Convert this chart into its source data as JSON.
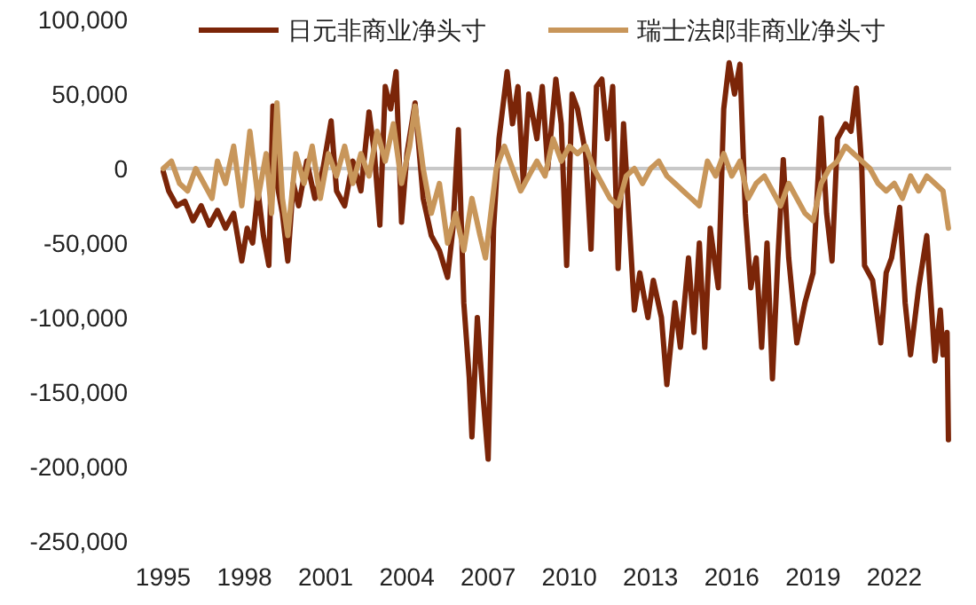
{
  "chart_data": {
    "type": "line",
    "xlim": [
      1995,
      2024.1
    ],
    "ylim": [
      -250000,
      100000
    ],
    "xticks": [
      1995,
      1998,
      2001,
      2004,
      2007,
      2010,
      2013,
      2016,
      2019,
      2022
    ],
    "yticks": [
      {
        "value": -250000,
        "label": "-250,000"
      },
      {
        "value": -200000,
        "label": "-200,000"
      },
      {
        "value": -150000,
        "label": "-150,000"
      },
      {
        "value": -100000,
        "label": "-100,000"
      },
      {
        "value": -50000,
        "label": "-50,000"
      },
      {
        "value": 0,
        "label": "0"
      },
      {
        "value": 50000,
        "label": "50,000"
      },
      {
        "value": 100000,
        "label": "100,000"
      }
    ],
    "grid": false,
    "legend": "top",
    "marker": "none",
    "line_style": "solid",
    "ref_lines": [
      {
        "axis": "y",
        "value": 0,
        "color": "#c8c8c8"
      }
    ],
    "series": [
      {
        "name": "日元非商业净头寸",
        "color": "#7b2508",
        "x": [
          1995.0,
          1995.2,
          1995.5,
          1995.8,
          1996.1,
          1996.4,
          1996.7,
          1997.0,
          1997.3,
          1997.6,
          1997.9,
          1998.1,
          1998.3,
          1998.5,
          1998.7,
          1998.9,
          1999.05,
          1999.2,
          1999.4,
          1999.6,
          1999.8,
          2000.0,
          2000.3,
          2000.6,
          2000.9,
          2001.2,
          2001.4,
          2001.7,
          2002.0,
          2002.3,
          2002.6,
          2002.8,
          2003.0,
          2003.2,
          2003.4,
          2003.6,
          2003.8,
          2004.0,
          2004.3,
          2004.6,
          2004.9,
          2005.2,
          2005.5,
          2005.7,
          2005.9,
          2006.1,
          2006.3,
          2006.4,
          2006.6,
          2006.8,
          2007.0,
          2007.2,
          2007.4,
          2007.7,
          2007.9,
          2008.1,
          2008.3,
          2008.5,
          2008.8,
          2009.0,
          2009.2,
          2009.5,
          2009.7,
          2009.9,
          2010.1,
          2010.3,
          2010.6,
          2010.8,
          2011.0,
          2011.2,
          2011.4,
          2011.6,
          2011.8,
          2012.0,
          2012.4,
          2012.6,
          2012.9,
          2013.1,
          2013.4,
          2013.6,
          2013.9,
          2014.1,
          2014.4,
          2014.6,
          2014.8,
          2015.0,
          2015.2,
          2015.5,
          2015.7,
          2015.9,
          2016.1,
          2016.3,
          2016.5,
          2016.7,
          2016.9,
          2017.1,
          2017.3,
          2017.5,
          2017.7,
          2017.9,
          2018.1,
          2018.4,
          2018.7,
          2019.0,
          2019.3,
          2019.5,
          2019.7,
          2019.9,
          2020.2,
          2020.4,
          2020.6,
          2020.8,
          2020.9,
          2021.2,
          2021.5,
          2021.7,
          2021.9,
          2022.2,
          2022.4,
          2022.6,
          2022.9,
          2023.2,
          2023.5,
          2023.7,
          2023.8,
          2023.95,
          2024.0
        ],
        "values": [
          -2000,
          -15000,
          -25000,
          -22000,
          -35000,
          -25000,
          -38000,
          -28000,
          -40000,
          -30000,
          -62000,
          -40000,
          -50000,
          -15000,
          -45000,
          -65000,
          42000,
          -10000,
          -30000,
          -62000,
          -10000,
          -25000,
          5000,
          -20000,
          0,
          32000,
          -15000,
          -25000,
          5000,
          -15000,
          38000,
          10000,
          -38000,
          55000,
          40000,
          65000,
          -36000,
          10000,
          44000,
          -20000,
          -45000,
          -55000,
          -73000,
          -40000,
          26000,
          -90000,
          -140000,
          -180000,
          -100000,
          -150000,
          -195000,
          -40000,
          20000,
          65000,
          30000,
          55000,
          -10000,
          50000,
          20000,
          55000,
          0,
          60000,
          30000,
          -65000,
          50000,
          40000,
          10000,
          -54000,
          55000,
          60000,
          20000,
          55000,
          -67000,
          30000,
          -95000,
          -70000,
          -100000,
          -75000,
          -100000,
          -145000,
          -90000,
          -120000,
          -60000,
          -110000,
          -50000,
          -120000,
          -40000,
          -80000,
          40000,
          71000,
          50000,
          70000,
          -30000,
          -80000,
          -60000,
          -120000,
          -50000,
          -141000,
          -60000,
          6000,
          -60000,
          -117000,
          -90000,
          -70000,
          34000,
          -30000,
          -62000,
          20000,
          30000,
          25000,
          54000,
          0,
          -65000,
          -75000,
          -117000,
          -70000,
          -60000,
          -26000,
          -90000,
          -125000,
          -80000,
          -45000,
          -129000,
          -95000,
          -125000,
          -110000,
          -182000
        ]
      },
      {
        "name": "瑞士法郎非商业净头寸",
        "color": "#c8965a",
        "x": [
          1995.0,
          1995.3,
          1995.6,
          1995.9,
          1996.2,
          1996.5,
          1996.8,
          1997.0,
          1997.3,
          1997.6,
          1997.9,
          1998.2,
          1998.5,
          1998.8,
          1999.0,
          1999.2,
          1999.4,
          1999.6,
          1999.9,
          2000.2,
          2000.5,
          2000.8,
          2001.1,
          2001.4,
          2001.7,
          2002.0,
          2002.3,
          2002.6,
          2002.9,
          2003.2,
          2003.5,
          2003.8,
          2004.1,
          2004.3,
          2004.6,
          2004.9,
          2005.2,
          2005.5,
          2005.8,
          2006.1,
          2006.4,
          2006.7,
          2006.9,
          2007.1,
          2007.3,
          2007.6,
          2007.9,
          2008.2,
          2008.5,
          2008.8,
          2009.1,
          2009.4,
          2009.7,
          2010.0,
          2010.3,
          2010.6,
          2010.9,
          2011.2,
          2011.5,
          2011.8,
          2012.1,
          2012.4,
          2012.7,
          2013.0,
          2013.3,
          2013.6,
          2013.9,
          2014.2,
          2014.5,
          2014.8,
          2015.1,
          2015.4,
          2015.7,
          2016.0,
          2016.3,
          2016.6,
          2016.9,
          2017.2,
          2017.5,
          2017.8,
          2018.1,
          2018.4,
          2018.7,
          2019.0,
          2019.3,
          2019.6,
          2019.9,
          2020.2,
          2020.5,
          2020.8,
          2021.1,
          2021.4,
          2021.7,
          2022.0,
          2022.3,
          2022.6,
          2022.9,
          2023.2,
          2023.5,
          2023.8,
          2024.0
        ],
        "values": [
          0,
          5000,
          -10000,
          -15000,
          0,
          -10000,
          -20000,
          5000,
          -10000,
          15000,
          -25000,
          25000,
          -20000,
          10000,
          -30000,
          44000,
          -20000,
          -45000,
          10000,
          -10000,
          15000,
          -20000,
          10000,
          -5000,
          15000,
          -10000,
          10000,
          -5000,
          25000,
          5000,
          30000,
          -10000,
          15000,
          42000,
          0,
          -30000,
          -10000,
          -50000,
          -30000,
          -55000,
          -20000,
          -45000,
          -60000,
          -30000,
          0,
          15000,
          0,
          -15000,
          -5000,
          5000,
          -5000,
          20000,
          5000,
          15000,
          10000,
          15000,
          0,
          -10000,
          -20000,
          -25000,
          -5000,
          0,
          -10000,
          0,
          5000,
          -5000,
          -10000,
          -15000,
          -20000,
          -25000,
          5000,
          -5000,
          10000,
          -5000,
          5000,
          -20000,
          -10000,
          -5000,
          -15000,
          -25000,
          -10000,
          -20000,
          -30000,
          -35000,
          -10000,
          0,
          5000,
          15000,
          10000,
          5000,
          0,
          -10000,
          -15000,
          -10000,
          -20000,
          -5000,
          -15000,
          -5000,
          -10000,
          -15000,
          -40000
        ]
      }
    ]
  }
}
